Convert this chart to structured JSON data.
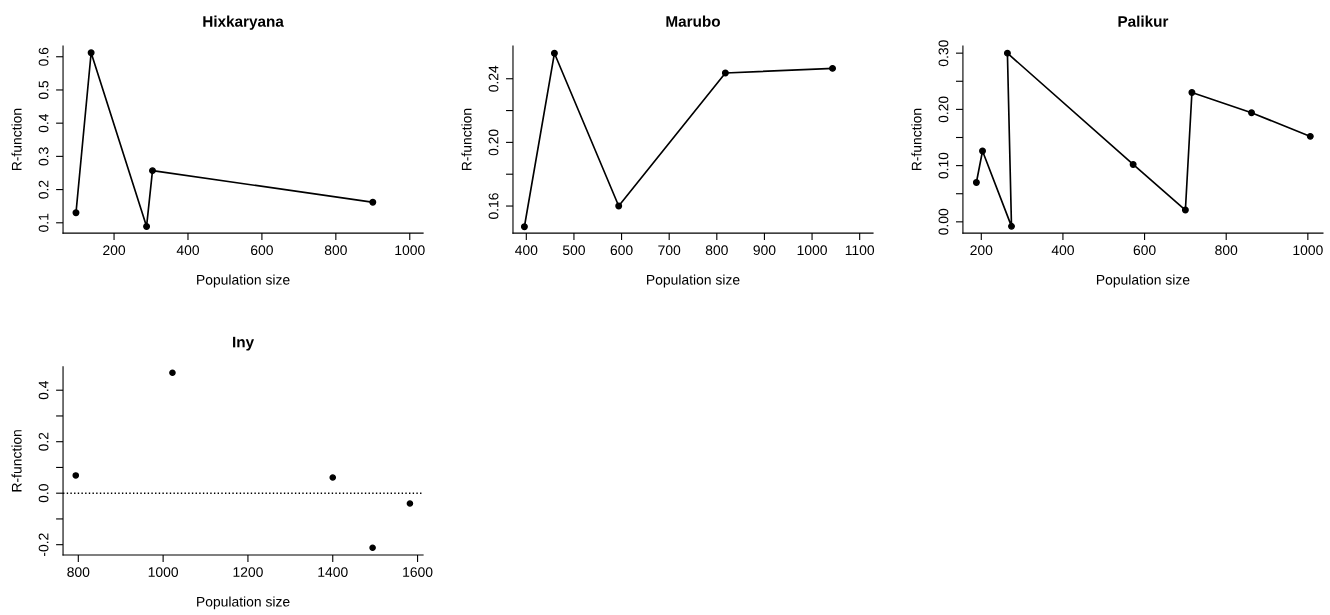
{
  "chart_data": [
    {
      "type": "line",
      "title": "Hixkaryana",
      "xlabel": "Population size",
      "ylabel": "R-function",
      "marker": "circle",
      "line_style": "solid",
      "x": [
        97,
        138,
        288,
        304,
        900
      ],
      "series": [
        {
          "color": "#000000",
          "values": [
            0.13,
            0.612,
            0.089,
            0.257,
            0.162
          ]
        }
      ],
      "xlim": [
        62,
        1036
      ],
      "ylim": [
        0.069,
        0.632
      ],
      "xticks": [
        200,
        400,
        600,
        800,
        1000
      ],
      "yticks": [
        0.1,
        0.2,
        0.3,
        0.4,
        0.5,
        0.6
      ]
    },
    {
      "type": "line",
      "title": "Marubo",
      "xlabel": "Population size",
      "ylabel": "R-function",
      "marker": "circle",
      "line_style": "solid",
      "x": [
        396,
        459,
        594,
        818,
        1043
      ],
      "series": [
        {
          "color": "#000000",
          "values": [
            0.147,
            0.256,
            0.16,
            0.2436,
            0.2465
          ]
        }
      ],
      "xlim": [
        372,
        1128
      ],
      "ylim": [
        0.143,
        0.2605
      ],
      "xticks": [
        400,
        500,
        600,
        700,
        800,
        900,
        1000,
        1100
      ],
      "yticks": [
        {
          "value": 0.16,
          "label": "0.16"
        },
        {
          "value": 0.18,
          "label": null
        },
        {
          "value": 0.2,
          "label": "0.20"
        },
        {
          "value": 0.22,
          "label": null
        },
        {
          "value": 0.24,
          "label": "0.24"
        }
      ]
    },
    {
      "type": "line",
      "title": "Palikur",
      "xlabel": "Population size",
      "ylabel": "R-function",
      "marker": "circle",
      "line_style": "solid",
      "x": [
        188,
        203,
        274,
        264,
        572,
        700,
        716,
        862,
        1006
      ],
      "series": [
        {
          "color": "#000000",
          "values": [
            0.07,
            0.126,
            -0.008,
            0.3,
            0.102,
            0.021,
            0.23,
            0.194,
            0.152
          ]
        }
      ],
      "xlim": [
        155,
        1037
      ],
      "ylim": [
        -0.02,
        0.3125
      ],
      "xticks": [
        200,
        400,
        600,
        800,
        1000
      ],
      "yticks": [
        {
          "value": 0.0,
          "label": "0.00"
        },
        {
          "value": 0.05,
          "label": null
        },
        {
          "value": 0.1,
          "label": "0.10"
        },
        {
          "value": 0.15,
          "label": null
        },
        {
          "value": 0.2,
          "label": "0.20"
        },
        {
          "value": 0.25,
          "label": null
        },
        {
          "value": 0.3,
          "label": "0.30"
        }
      ]
    },
    {
      "type": "scatter",
      "title": "Iny",
      "xlabel": "Population size",
      "ylabel": "R-function",
      "marker": "circle",
      "x": [
        794,
        1022,
        1400,
        1494,
        1582
      ],
      "series": [
        {
          "color": "#000000",
          "values": [
            0.069,
            0.468,
            0.061,
            -0.212,
            -0.04
          ]
        }
      ],
      "xlim": [
        764,
        1613
      ],
      "ylim": [
        -0.24,
        0.491
      ],
      "xticks": [
        800,
        1000,
        1200,
        1400,
        1600
      ],
      "yticks": [
        {
          "value": -0.2,
          "label": "-0.2"
        },
        {
          "value": -0.1,
          "label": null
        },
        {
          "value": 0.0,
          "label": "0.0"
        },
        {
          "value": 0.1,
          "label": null
        },
        {
          "value": 0.2,
          "label": "0.2"
        },
        {
          "value": 0.3,
          "label": null
        },
        {
          "value": 0.4,
          "label": "0.4"
        }
      ],
      "ref_lines": [
        {
          "axis": "y",
          "value": 0,
          "color": "#000000",
          "line_style": "dotted"
        }
      ]
    }
  ]
}
